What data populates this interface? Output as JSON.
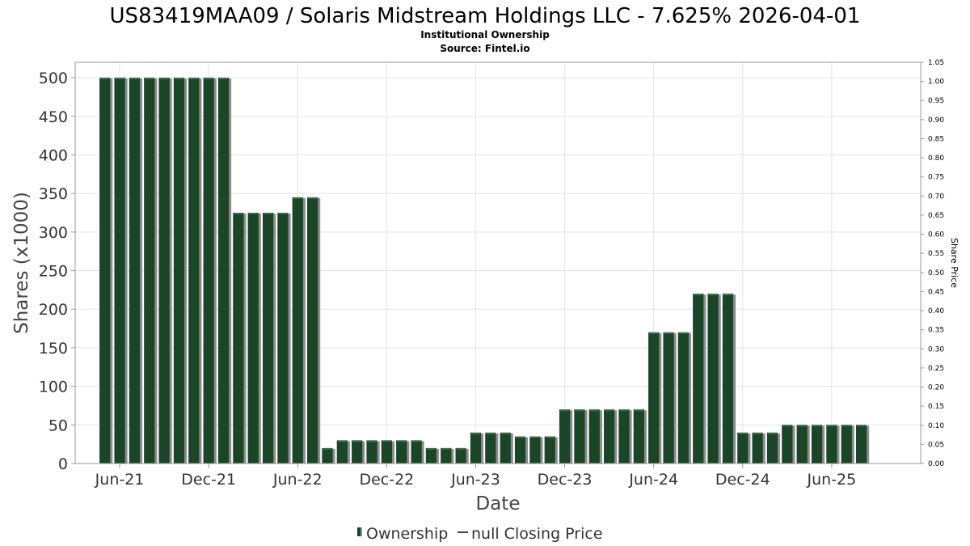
{
  "chart_data": {
    "type": "bar",
    "title": "US83419MAA09 / Solaris Midstream Holdings LLC - 7.625% 2026-04-01",
    "subtitle_lines": [
      "Institutional Ownership",
      "Source: Fintel.io"
    ],
    "xlabel": "Date",
    "ylabel": "Shares (x1000)",
    "ylabel_right": "Share Price",
    "ylim": [
      0,
      520
    ],
    "ylim_right": [
      0,
      1.05
    ],
    "y_ticks": [
      "0",
      "50",
      "100",
      "150",
      "200",
      "250",
      "300",
      "350",
      "400",
      "450",
      "500"
    ],
    "y_ticks_right": [
      "0.00",
      "0.05",
      "0.10",
      "0.15",
      "0.20",
      "0.25",
      "0.30",
      "0.35",
      "0.40",
      "0.45",
      "0.50",
      "0.55",
      "0.60",
      "0.65",
      "0.70",
      "0.75",
      "0.80",
      "0.85",
      "0.90",
      "0.95",
      "1.00",
      "1.05"
    ],
    "x_tick_labels": [
      "Jun-21",
      "Dec-21",
      "Jun-22",
      "Dec-22",
      "Jun-23",
      "Dec-23",
      "Jun-24",
      "Dec-24",
      "Jun-25"
    ],
    "x_range": [
      "2021-03",
      "2025-12"
    ],
    "x_tick_dates": [
      "2021-06",
      "2021-12",
      "2022-06",
      "2022-12",
      "2023-06",
      "2023-12",
      "2024-06",
      "2024-12",
      "2025-06"
    ],
    "series": [
      {
        "name": "Ownership",
        "color": "#1a4526",
        "dates": [
          "2021-05",
          "2021-06",
          "2021-07",
          "2021-08",
          "2021-09",
          "2021-10",
          "2021-11",
          "2021-12",
          "2022-01",
          "2022-02",
          "2022-03",
          "2022-04",
          "2022-05",
          "2022-06",
          "2022-07",
          "2022-08",
          "2022-09",
          "2022-10",
          "2022-11",
          "2022-12",
          "2023-01",
          "2023-02",
          "2023-03",
          "2023-04",
          "2023-05",
          "2023-06",
          "2023-07",
          "2023-08",
          "2023-09",
          "2023-10",
          "2023-11",
          "2023-12",
          "2024-01",
          "2024-02",
          "2024-03",
          "2024-04",
          "2024-05",
          "2024-06",
          "2024-07",
          "2024-08",
          "2024-09",
          "2024-10",
          "2024-11",
          "2024-12",
          "2025-01",
          "2025-02",
          "2025-03",
          "2025-04",
          "2025-05",
          "2025-06",
          "2025-07",
          "2025-08"
        ],
        "values": [
          500,
          500,
          500,
          500,
          500,
          500,
          500,
          500,
          500,
          325,
          325,
          325,
          325,
          345,
          345,
          20,
          30,
          30,
          30,
          30,
          30,
          30,
          20,
          20,
          20,
          40,
          40,
          40,
          35,
          35,
          35,
          70,
          70,
          70,
          70,
          70,
          70,
          170,
          170,
          170,
          220,
          220,
          220,
          40,
          40,
          40,
          50,
          50,
          50,
          50,
          50,
          50
        ]
      }
    ],
    "legend": {
      "placement": "bottom-center",
      "items": [
        "Ownership",
        "null Closing Price"
      ]
    },
    "grid": true
  }
}
